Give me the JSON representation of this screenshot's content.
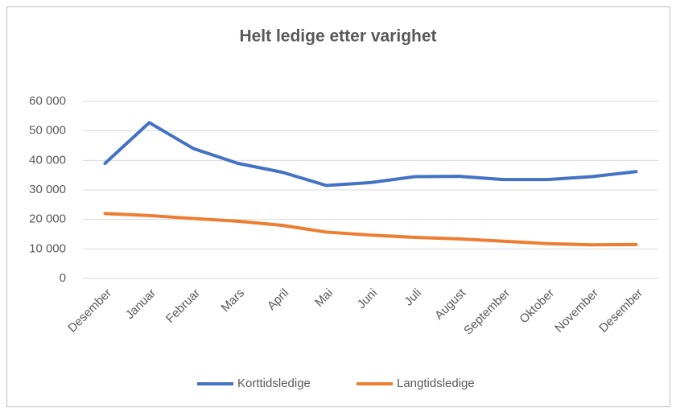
{
  "chart_data": {
    "type": "line",
    "title": "Helt ledige etter varighet",
    "categories": [
      "Desember",
      "Januar",
      "Februar",
      "Mars",
      "April",
      "Mai",
      "Juni",
      "Juli",
      "August",
      "September",
      "Oktober",
      "November",
      "Desember"
    ],
    "series": [
      {
        "name": "Korttidsledige",
        "color": "#4472c4",
        "values": [
          39000,
          52800,
          44000,
          39000,
          36000,
          31500,
          32500,
          34500,
          34600,
          33500,
          33500,
          34500,
          36200
        ]
      },
      {
        "name": "Langtidsledige",
        "color": "#ed7d31",
        "values": [
          22000,
          21300,
          20300,
          19400,
          18000,
          15700,
          14700,
          13900,
          13400,
          12600,
          11800,
          11400,
          11500
        ]
      }
    ],
    "ylim": [
      0,
      60000
    ],
    "yticks": [
      0,
      {
        "value": 10000,
        "label": "10 000"
      },
      {
        "value": 20000,
        "label": "20 000"
      },
      {
        "value": 30000,
        "label": "30 000"
      },
      {
        "value": 40000,
        "label": "40 000"
      },
      {
        "value": 50000,
        "label": "50 000"
      },
      {
        "value": 60000,
        "label": "60 000"
      }
    ],
    "grid": true,
    "legend": "bottom"
  }
}
